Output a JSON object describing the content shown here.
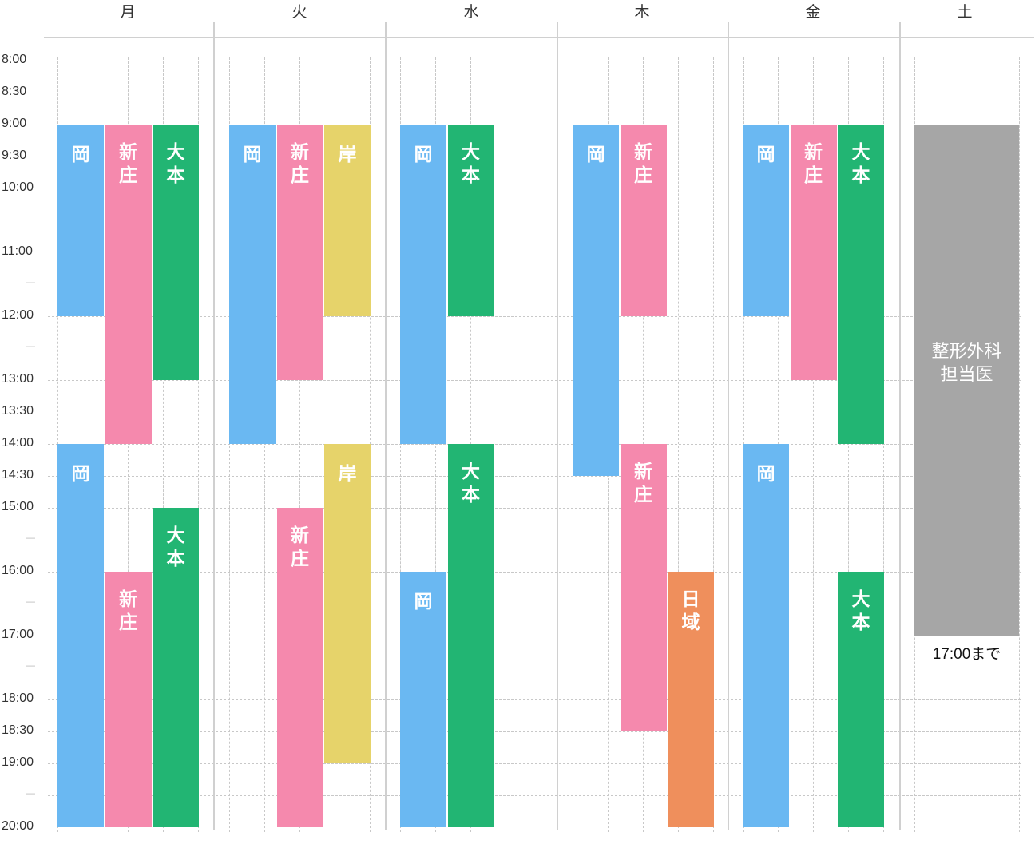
{
  "days": [
    "月",
    "火",
    "水",
    "木",
    "金",
    "土"
  ],
  "time_labels": [
    {
      "t": 8,
      "label": "8:00"
    },
    {
      "t": 8.5,
      "label": "8:30"
    },
    {
      "t": 9,
      "label": "9:00"
    },
    {
      "t": 9.5,
      "label": "9:30"
    },
    {
      "t": 10,
      "label": "10:00"
    },
    {
      "t": 11,
      "label": "11:00"
    },
    {
      "t": 11.5,
      "label": "—"
    },
    {
      "t": 12,
      "label": "12:00"
    },
    {
      "t": 12.5,
      "label": "—"
    },
    {
      "t": 13,
      "label": "13:00"
    },
    {
      "t": 13.5,
      "label": "13:30"
    },
    {
      "t": 14,
      "label": "14:00"
    },
    {
      "t": 14.5,
      "label": "14:30"
    },
    {
      "t": 15,
      "label": "15:00"
    },
    {
      "t": 15.5,
      "label": "—"
    },
    {
      "t": 16,
      "label": "16:00"
    },
    {
      "t": 16.5,
      "label": "—"
    },
    {
      "t": 17,
      "label": "17:00"
    },
    {
      "t": 17.5,
      "label": "—"
    },
    {
      "t": 18,
      "label": "18:00"
    },
    {
      "t": 18.5,
      "label": "18:30"
    },
    {
      "t": 19,
      "label": "19:00"
    },
    {
      "t": 19.5,
      "label": "—"
    },
    {
      "t": 20,
      "label": "20:00"
    }
  ],
  "colors": {
    "岡": "#6ab8f2",
    "新庄": "#f589ad",
    "大本": "#22b573",
    "岸": "#e6d36a",
    "日域": "#ef8f5c",
    "gray": "#a6a6a6"
  },
  "shifts": [
    {
      "day": 0,
      "col": 0,
      "name": "岡",
      "start": 9,
      "end": 12
    },
    {
      "day": 0,
      "col": 1,
      "name": "新庄",
      "start": 9,
      "end": 14
    },
    {
      "day": 0,
      "col": 2,
      "name": "大本",
      "start": 9,
      "end": 13
    },
    {
      "day": 0,
      "col": 0,
      "name": "岡",
      "start": 14,
      "end": 20
    },
    {
      "day": 0,
      "col": 1,
      "name": "新庄",
      "start": 16,
      "end": 20
    },
    {
      "day": 0,
      "col": 2,
      "name": "大本",
      "start": 15,
      "end": 20
    },
    {
      "day": 1,
      "col": 0,
      "name": "岡",
      "start": 9,
      "end": 14
    },
    {
      "day": 1,
      "col": 1,
      "name": "新庄",
      "start": 9,
      "end": 13
    },
    {
      "day": 1,
      "col": 2,
      "name": "岸",
      "start": 9,
      "end": 12
    },
    {
      "day": 1,
      "col": 1,
      "name": "新庄",
      "start": 15,
      "end": 20
    },
    {
      "day": 1,
      "col": 2,
      "name": "岸",
      "start": 14,
      "end": 19
    },
    {
      "day": 2,
      "col": 0,
      "name": "岡",
      "start": 9,
      "end": 14
    },
    {
      "day": 2,
      "col": 1,
      "name": "大本",
      "start": 9,
      "end": 12
    },
    {
      "day": 2,
      "col": 0,
      "name": "岡",
      "start": 16,
      "end": 20
    },
    {
      "day": 2,
      "col": 1,
      "name": "大本",
      "start": 14,
      "end": 20
    },
    {
      "day": 3,
      "col": 0,
      "name": "岡",
      "start": 9,
      "end": 14.5
    },
    {
      "day": 3,
      "col": 1,
      "name": "新庄",
      "start": 9,
      "end": 12
    },
    {
      "day": 3,
      "col": 1,
      "name": "新庄",
      "start": 14,
      "end": 18.5
    },
    {
      "day": 3,
      "col": 2,
      "name": "日域",
      "start": 16,
      "end": 20
    },
    {
      "day": 4,
      "col": 0,
      "name": "岡",
      "start": 9,
      "end": 12
    },
    {
      "day": 4,
      "col": 1,
      "name": "新庄",
      "start": 9,
      "end": 13
    },
    {
      "day": 4,
      "col": 2,
      "name": "大本",
      "start": 9,
      "end": 14
    },
    {
      "day": 4,
      "col": 0,
      "name": "岡",
      "start": 14,
      "end": 20
    },
    {
      "day": 4,
      "col": 2,
      "name": "大本",
      "start": 16,
      "end": 20
    }
  ],
  "saturday": {
    "label_line1": "整形外科",
    "label_line2": "担当医",
    "start": 9,
    "end": 17,
    "note": "17:00まで"
  }
}
